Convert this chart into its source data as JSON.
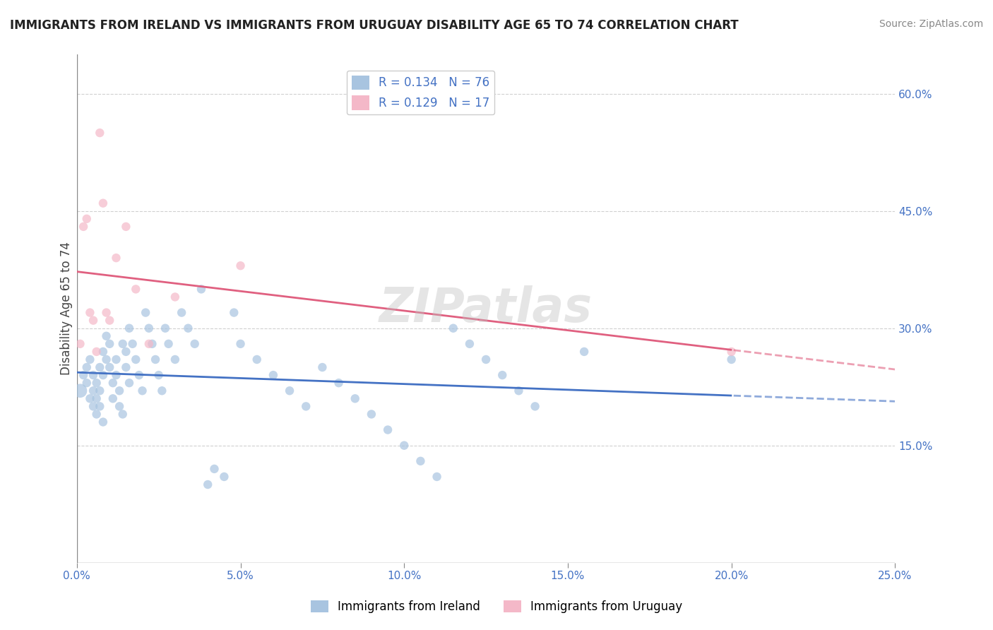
{
  "title": "IMMIGRANTS FROM IRELAND VS IMMIGRANTS FROM URUGUAY DISABILITY AGE 65 TO 74 CORRELATION CHART",
  "source": "Source: ZipAtlas.com",
  "xlabel": "",
  "ylabel": "Disability Age 65 to 74",
  "xlim": [
    0.0,
    0.25
  ],
  "ylim": [
    0.0,
    0.65
  ],
  "xticks": [
    0.0,
    0.05,
    0.1,
    0.15,
    0.2,
    0.25
  ],
  "xticklabels": [
    "0.0%",
    "5.0%",
    "10.0%",
    "15.0%",
    "20.0%",
    "25.0%"
  ],
  "yticks_right": [
    0.15,
    0.3,
    0.45,
    0.6
  ],
  "ytick_labels_right": [
    "15.0%",
    "30.0%",
    "45.0%",
    "60.0%"
  ],
  "R_ireland": 0.134,
  "N_ireland": 76,
  "R_uruguay": 0.129,
  "N_uruguay": 17,
  "color_ireland": "#a8c4e0",
  "color_uruguay": "#f4b8c8",
  "color_ireland_dark": "#4472c4",
  "color_uruguay_dark": "#e06080",
  "color_trend_ireland": "#4472c4",
  "color_trend_uruguay": "#e06080",
  "color_text_blue": "#4472c4",
  "background_color": "#ffffff",
  "grid_color": "#d0d0d0",
  "watermark": "ZIPatlas",
  "ireland_x": [
    0.001,
    0.002,
    0.003,
    0.003,
    0.004,
    0.004,
    0.005,
    0.005,
    0.005,
    0.006,
    0.006,
    0.006,
    0.007,
    0.007,
    0.007,
    0.008,
    0.008,
    0.008,
    0.009,
    0.009,
    0.01,
    0.01,
    0.011,
    0.011,
    0.012,
    0.012,
    0.013,
    0.013,
    0.014,
    0.014,
    0.015,
    0.015,
    0.016,
    0.016,
    0.017,
    0.018,
    0.019,
    0.02,
    0.021,
    0.022,
    0.023,
    0.024,
    0.025,
    0.026,
    0.027,
    0.028,
    0.03,
    0.032,
    0.034,
    0.036,
    0.038,
    0.04,
    0.042,
    0.045,
    0.048,
    0.05,
    0.055,
    0.06,
    0.065,
    0.07,
    0.075,
    0.08,
    0.085,
    0.09,
    0.095,
    0.1,
    0.105,
    0.11,
    0.115,
    0.12,
    0.125,
    0.13,
    0.135,
    0.14,
    0.155,
    0.2
  ],
  "ireland_y": [
    0.22,
    0.24,
    0.25,
    0.23,
    0.21,
    0.26,
    0.2,
    0.22,
    0.24,
    0.19,
    0.21,
    0.23,
    0.25,
    0.22,
    0.2,
    0.18,
    0.24,
    0.27,
    0.26,
    0.29,
    0.28,
    0.25,
    0.23,
    0.21,
    0.26,
    0.24,
    0.22,
    0.2,
    0.19,
    0.28,
    0.27,
    0.25,
    0.23,
    0.3,
    0.28,
    0.26,
    0.24,
    0.22,
    0.32,
    0.3,
    0.28,
    0.26,
    0.24,
    0.22,
    0.3,
    0.28,
    0.26,
    0.32,
    0.3,
    0.28,
    0.35,
    0.1,
    0.12,
    0.11,
    0.32,
    0.28,
    0.26,
    0.24,
    0.22,
    0.2,
    0.25,
    0.23,
    0.21,
    0.19,
    0.17,
    0.15,
    0.13,
    0.11,
    0.3,
    0.28,
    0.26,
    0.24,
    0.22,
    0.2,
    0.27,
    0.26
  ],
  "ireland_sizes": [
    200,
    80,
    80,
    80,
    80,
    80,
    80,
    80,
    80,
    80,
    80,
    80,
    80,
    80,
    80,
    80,
    80,
    80,
    80,
    80,
    80,
    80,
    80,
    80,
    80,
    80,
    80,
    80,
    80,
    80,
    80,
    80,
    80,
    80,
    80,
    80,
    80,
    80,
    80,
    80,
    80,
    80,
    80,
    80,
    80,
    80,
    80,
    80,
    80,
    80,
    80,
    80,
    80,
    80,
    80,
    80,
    80,
    80,
    80,
    80,
    80,
    80,
    80,
    80,
    80,
    80,
    80,
    80,
    80,
    80,
    80,
    80,
    80,
    80,
    80,
    80
  ],
  "uruguay_x": [
    0.001,
    0.002,
    0.003,
    0.004,
    0.005,
    0.006,
    0.007,
    0.008,
    0.009,
    0.01,
    0.012,
    0.015,
    0.018,
    0.022,
    0.03,
    0.05,
    0.2
  ],
  "uruguay_y": [
    0.28,
    0.43,
    0.44,
    0.32,
    0.31,
    0.27,
    0.55,
    0.46,
    0.32,
    0.31,
    0.39,
    0.43,
    0.35,
    0.28,
    0.34,
    0.38,
    0.27
  ],
  "uruguay_sizes": [
    80,
    80,
    80,
    80,
    80,
    80,
    80,
    80,
    80,
    80,
    80,
    80,
    80,
    80,
    80,
    80,
    80
  ]
}
